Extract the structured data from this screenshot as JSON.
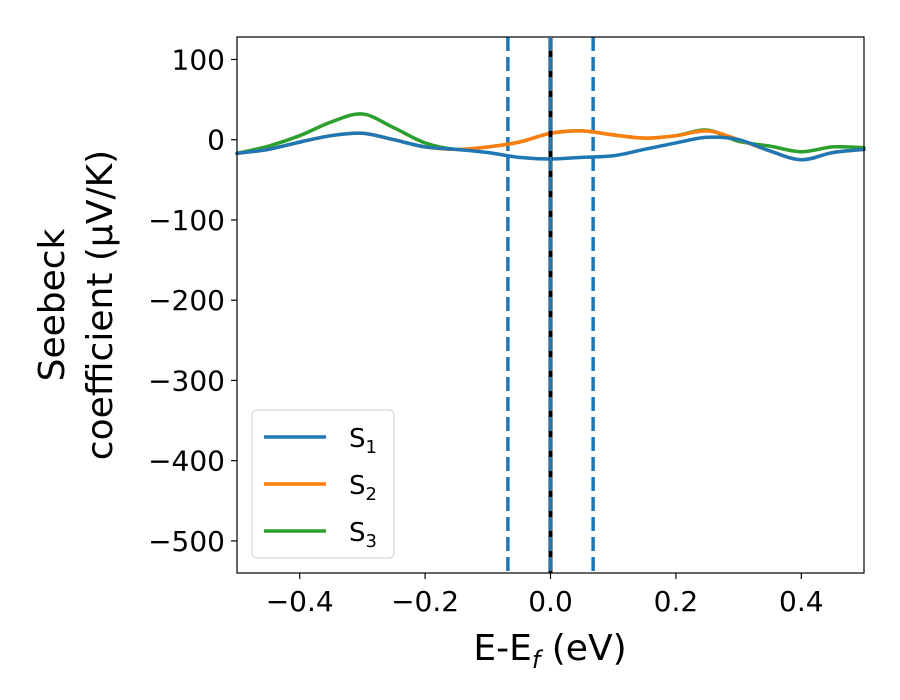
{
  "chart_data": {
    "type": "line",
    "title": "",
    "xlabel": {
      "main": "E-E",
      "sub": "f",
      "tail": " (eV)"
    },
    "ylabel": {
      "line1": "Seebeck",
      "line2": "coefficient  (μV/K)"
    },
    "xlim": [
      -0.5,
      0.5
    ],
    "ylim": [
      -540,
      128
    ],
    "xticks": [
      {
        "value": -0.4,
        "label": "−0.4"
      },
      {
        "value": -0.2,
        "label": "−0.2"
      },
      {
        "value": 0.0,
        "label": "0.0"
      },
      {
        "value": 0.2,
        "label": "0.2"
      },
      {
        "value": 0.4,
        "label": "0.4"
      }
    ],
    "yticks": [
      {
        "value": 100,
        "label": "100"
      },
      {
        "value": 0,
        "label": "0"
      },
      {
        "value": -100,
        "label": "−100"
      },
      {
        "value": -200,
        "label": "−200"
      },
      {
        "value": -300,
        "label": "−300"
      },
      {
        "value": -400,
        "label": "−400"
      },
      {
        "value": -500,
        "label": "−500"
      }
    ],
    "grid": false,
    "legend_position": "lower-left",
    "vlines": [
      {
        "x": -0.068,
        "style": "dashed",
        "color": "#1f77b4"
      },
      {
        "x": 0.068,
        "style": "dashed",
        "color": "#1f77b4"
      },
      {
        "x": 0.0,
        "style": "solid",
        "color": "#000000"
      },
      {
        "x": 0.0,
        "style": "dashed",
        "color": "#1f77b4"
      }
    ],
    "series": [
      {
        "name": "S",
        "sub": "1",
        "color": "#1f77b4",
        "x": [
          -0.5,
          -0.45,
          -0.4,
          -0.35,
          -0.3,
          -0.25,
          -0.2,
          -0.15,
          -0.1,
          -0.05,
          0.0,
          0.05,
          0.1,
          0.15,
          0.2,
          0.25,
          0.3,
          0.35,
          0.4,
          0.45,
          0.5
        ],
        "y": [
          -17,
          -12,
          -3,
          5,
          8,
          0,
          -9,
          -12,
          -16,
          -22,
          -24,
          -22,
          -20,
          -12,
          -4,
          3,
          0,
          -14,
          -25,
          -16,
          -12
        ]
      },
      {
        "name": "S",
        "sub": "2",
        "color": "#ff7f0e",
        "x": [
          -0.5,
          -0.45,
          -0.4,
          -0.35,
          -0.3,
          -0.25,
          -0.2,
          -0.15,
          -0.1,
          -0.05,
          0.0,
          0.05,
          0.1,
          0.15,
          0.2,
          0.25,
          0.3,
          0.35,
          0.4,
          0.45,
          0.5
        ],
        "y": [
          -17,
          -12,
          -3,
          5,
          8,
          0,
          -9,
          -12,
          -9,
          -3,
          8,
          11,
          6,
          2,
          5,
          11,
          0,
          -14,
          -25,
          -16,
          -12
        ]
      },
      {
        "name": "S",
        "sub": "3",
        "color": "#2ca02c",
        "x": [
          -0.5,
          -0.45,
          -0.4,
          -0.35,
          -0.3,
          -0.25,
          -0.2,
          -0.15,
          -0.1,
          -0.05,
          0.0,
          0.05,
          0.1,
          0.15,
          0.2,
          0.25,
          0.3,
          0.35,
          0.4,
          0.45,
          0.5
        ],
        "y": [
          -17,
          -8,
          5,
          22,
          32,
          15,
          -4,
          -12,
          -9,
          -3,
          8,
          11,
          6,
          2,
          5,
          12,
          -2,
          -8,
          -15,
          -9,
          -10
        ]
      }
    ]
  }
}
